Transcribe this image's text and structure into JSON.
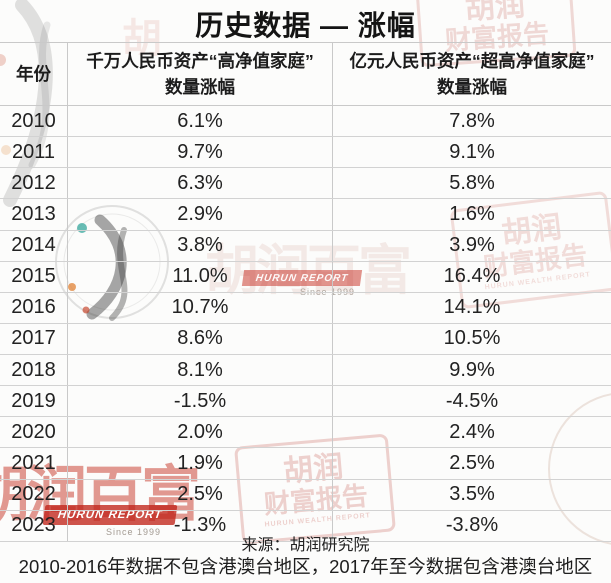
{
  "title": "历史数据 — 涨幅",
  "table": {
    "headers": {
      "year": "年份",
      "col2_line1": "千万人民币资产“高净值家庭”",
      "col2_line2": "数量涨幅",
      "col3_line1": "亿元人民币资产“超高净值家庭”",
      "col3_line2": "数量涨幅"
    },
    "rows": [
      {
        "year": "2010",
        "hnw": "6.1%",
        "uhnw": "7.8%"
      },
      {
        "year": "2011",
        "hnw": "9.7%",
        "uhnw": "9.1%"
      },
      {
        "year": "2012",
        "hnw": "6.3%",
        "uhnw": "5.8%"
      },
      {
        "year": "2013",
        "hnw": "2.9%",
        "uhnw": "1.6%"
      },
      {
        "year": "2014",
        "hnw": "3.8%",
        "uhnw": "3.9%"
      },
      {
        "year": "2015",
        "hnw": "11.0%",
        "uhnw": "16.4%"
      },
      {
        "year": "2016",
        "hnw": "10.7%",
        "uhnw": "14.1%"
      },
      {
        "year": "2017",
        "hnw": "8.6%",
        "uhnw": "10.5%"
      },
      {
        "year": "2018",
        "hnw": "8.1%",
        "uhnw": "9.9%"
      },
      {
        "year": "2019",
        "hnw": "-1.5%",
        "uhnw": "-4.5%"
      },
      {
        "year": "2020",
        "hnw": "2.0%",
        "uhnw": "2.4%"
      },
      {
        "year": "2021",
        "hnw": "1.9%",
        "uhnw": "2.5%"
      },
      {
        "year": "2022",
        "hnw": "2.5%",
        "uhnw": "3.5%"
      },
      {
        "year": "2023",
        "hnw": "-1.3%",
        "uhnw": "-3.8%"
      }
    ]
  },
  "footer": {
    "source": "来源：胡润研究院",
    "note": "2010-2016年数据不包含港澳台地区，2017年至今数据包含港澳台地区"
  },
  "watermarks": {
    "brand_cn": "胡润百富",
    "brand_cn_single": "胡",
    "brand_en": "HURUN REPORT",
    "since": "Since 1999",
    "wealth_stamp_line1": "胡润",
    "wealth_stamp_line2": "财富报告",
    "wealth_stamp_en": "HURUN WEALTH REPORT"
  },
  "colors": {
    "accent_red": "#c0392b",
    "border": "#c9c9c9",
    "text": "#1e1e1e",
    "background": "#fcfcfb"
  }
}
